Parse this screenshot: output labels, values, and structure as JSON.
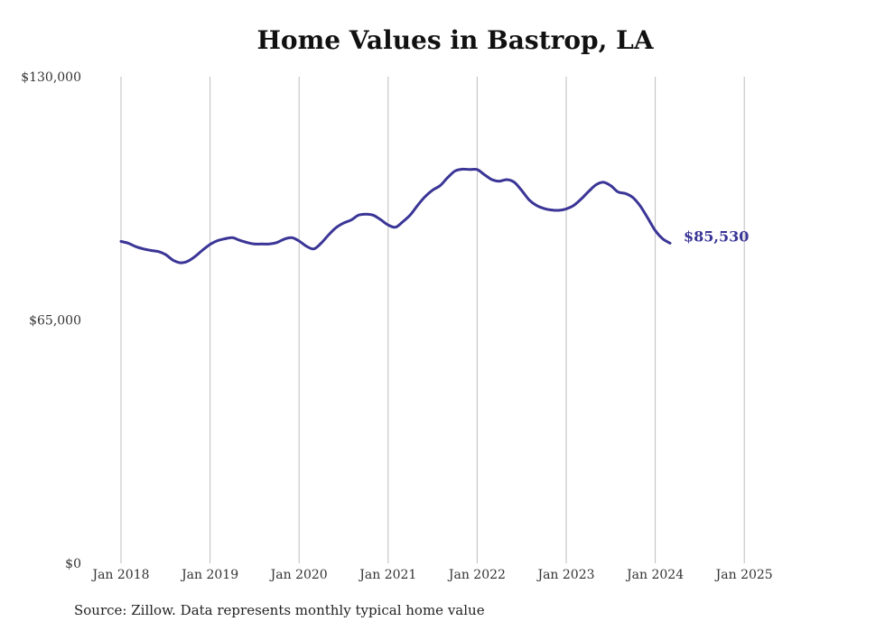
{
  "chart_data": {
    "type": "line",
    "title": "Home Values in Bastrop, LA",
    "xlabel": "",
    "ylabel": "",
    "ylim": [
      0,
      130000
    ],
    "y_ticks": [
      "$0",
      "$65,000",
      "$130,000"
    ],
    "x_ticks": [
      "Jan 2018",
      "Jan 2019",
      "Jan 2020",
      "Jan 2021",
      "Jan 2022",
      "Jan 2023",
      "Jan 2024",
      "Jan 2025"
    ],
    "grid": "vertical",
    "end_label": "$85,530",
    "series": [
      {
        "color": "#3a3596",
        "points": [
          [
            "2018-01",
            86000
          ],
          [
            "2018-02",
            85500
          ],
          [
            "2018-03",
            84600
          ],
          [
            "2018-04",
            84000
          ],
          [
            "2018-05",
            83600
          ],
          [
            "2018-06",
            83300
          ],
          [
            "2018-07",
            82500
          ],
          [
            "2018-08",
            81000
          ],
          [
            "2018-09",
            80300
          ],
          [
            "2018-10",
            80700
          ],
          [
            "2018-11",
            82000
          ],
          [
            "2018-12",
            83700
          ],
          [
            "2019-01",
            85200
          ],
          [
            "2019-02",
            86200
          ],
          [
            "2019-03",
            86700
          ],
          [
            "2019-04",
            87000
          ],
          [
            "2019-05",
            86300
          ],
          [
            "2019-06",
            85700
          ],
          [
            "2019-07",
            85300
          ],
          [
            "2019-08",
            85300
          ],
          [
            "2019-09",
            85300
          ],
          [
            "2019-10",
            85700
          ],
          [
            "2019-11",
            86600
          ],
          [
            "2019-12",
            87000
          ],
          [
            "2020-01",
            86100
          ],
          [
            "2020-02",
            84700
          ],
          [
            "2020-03",
            84000
          ],
          [
            "2020-04",
            85600
          ],
          [
            "2020-05",
            87800
          ],
          [
            "2020-06",
            89700
          ],
          [
            "2020-07",
            90900
          ],
          [
            "2020-08",
            91700
          ],
          [
            "2020-09",
            93000
          ],
          [
            "2020-10",
            93300
          ],
          [
            "2020-11",
            93000
          ],
          [
            "2020-12",
            91800
          ],
          [
            "2021-01",
            90400
          ],
          [
            "2021-02",
            89800
          ],
          [
            "2021-03",
            91300
          ],
          [
            "2021-04",
            93100
          ],
          [
            "2021-05",
            95700
          ],
          [
            "2021-06",
            98000
          ],
          [
            "2021-07",
            99700
          ],
          [
            "2021-08",
            100900
          ],
          [
            "2021-09",
            103000
          ],
          [
            "2021-10",
            104800
          ],
          [
            "2021-11",
            105300
          ],
          [
            "2021-12",
            105200
          ],
          [
            "2022-01",
            105200
          ],
          [
            "2022-02",
            103800
          ],
          [
            "2022-03",
            102500
          ],
          [
            "2022-04",
            102100
          ],
          [
            "2022-05",
            102500
          ],
          [
            "2022-06",
            101800
          ],
          [
            "2022-07",
            99600
          ],
          [
            "2022-08",
            97100
          ],
          [
            "2022-09",
            95600
          ],
          [
            "2022-10",
            94800
          ],
          [
            "2022-11",
            94400
          ],
          [
            "2022-12",
            94300
          ],
          [
            "2023-01",
            94700
          ],
          [
            "2023-02",
            95600
          ],
          [
            "2023-03",
            97300
          ],
          [
            "2023-04",
            99300
          ],
          [
            "2023-05",
            101100
          ],
          [
            "2023-06",
            101800
          ],
          [
            "2023-07",
            100900
          ],
          [
            "2023-08",
            99200
          ],
          [
            "2023-09",
            98800
          ],
          [
            "2023-10",
            97700
          ],
          [
            "2023-11",
            95400
          ],
          [
            "2023-12",
            92200
          ],
          [
            "2024-01",
            88900
          ],
          [
            "2024-02",
            86700
          ],
          [
            "2024-03",
            85530
          ]
        ]
      }
    ]
  },
  "source": "Source: Zillow. Data represents monthly typical home value"
}
